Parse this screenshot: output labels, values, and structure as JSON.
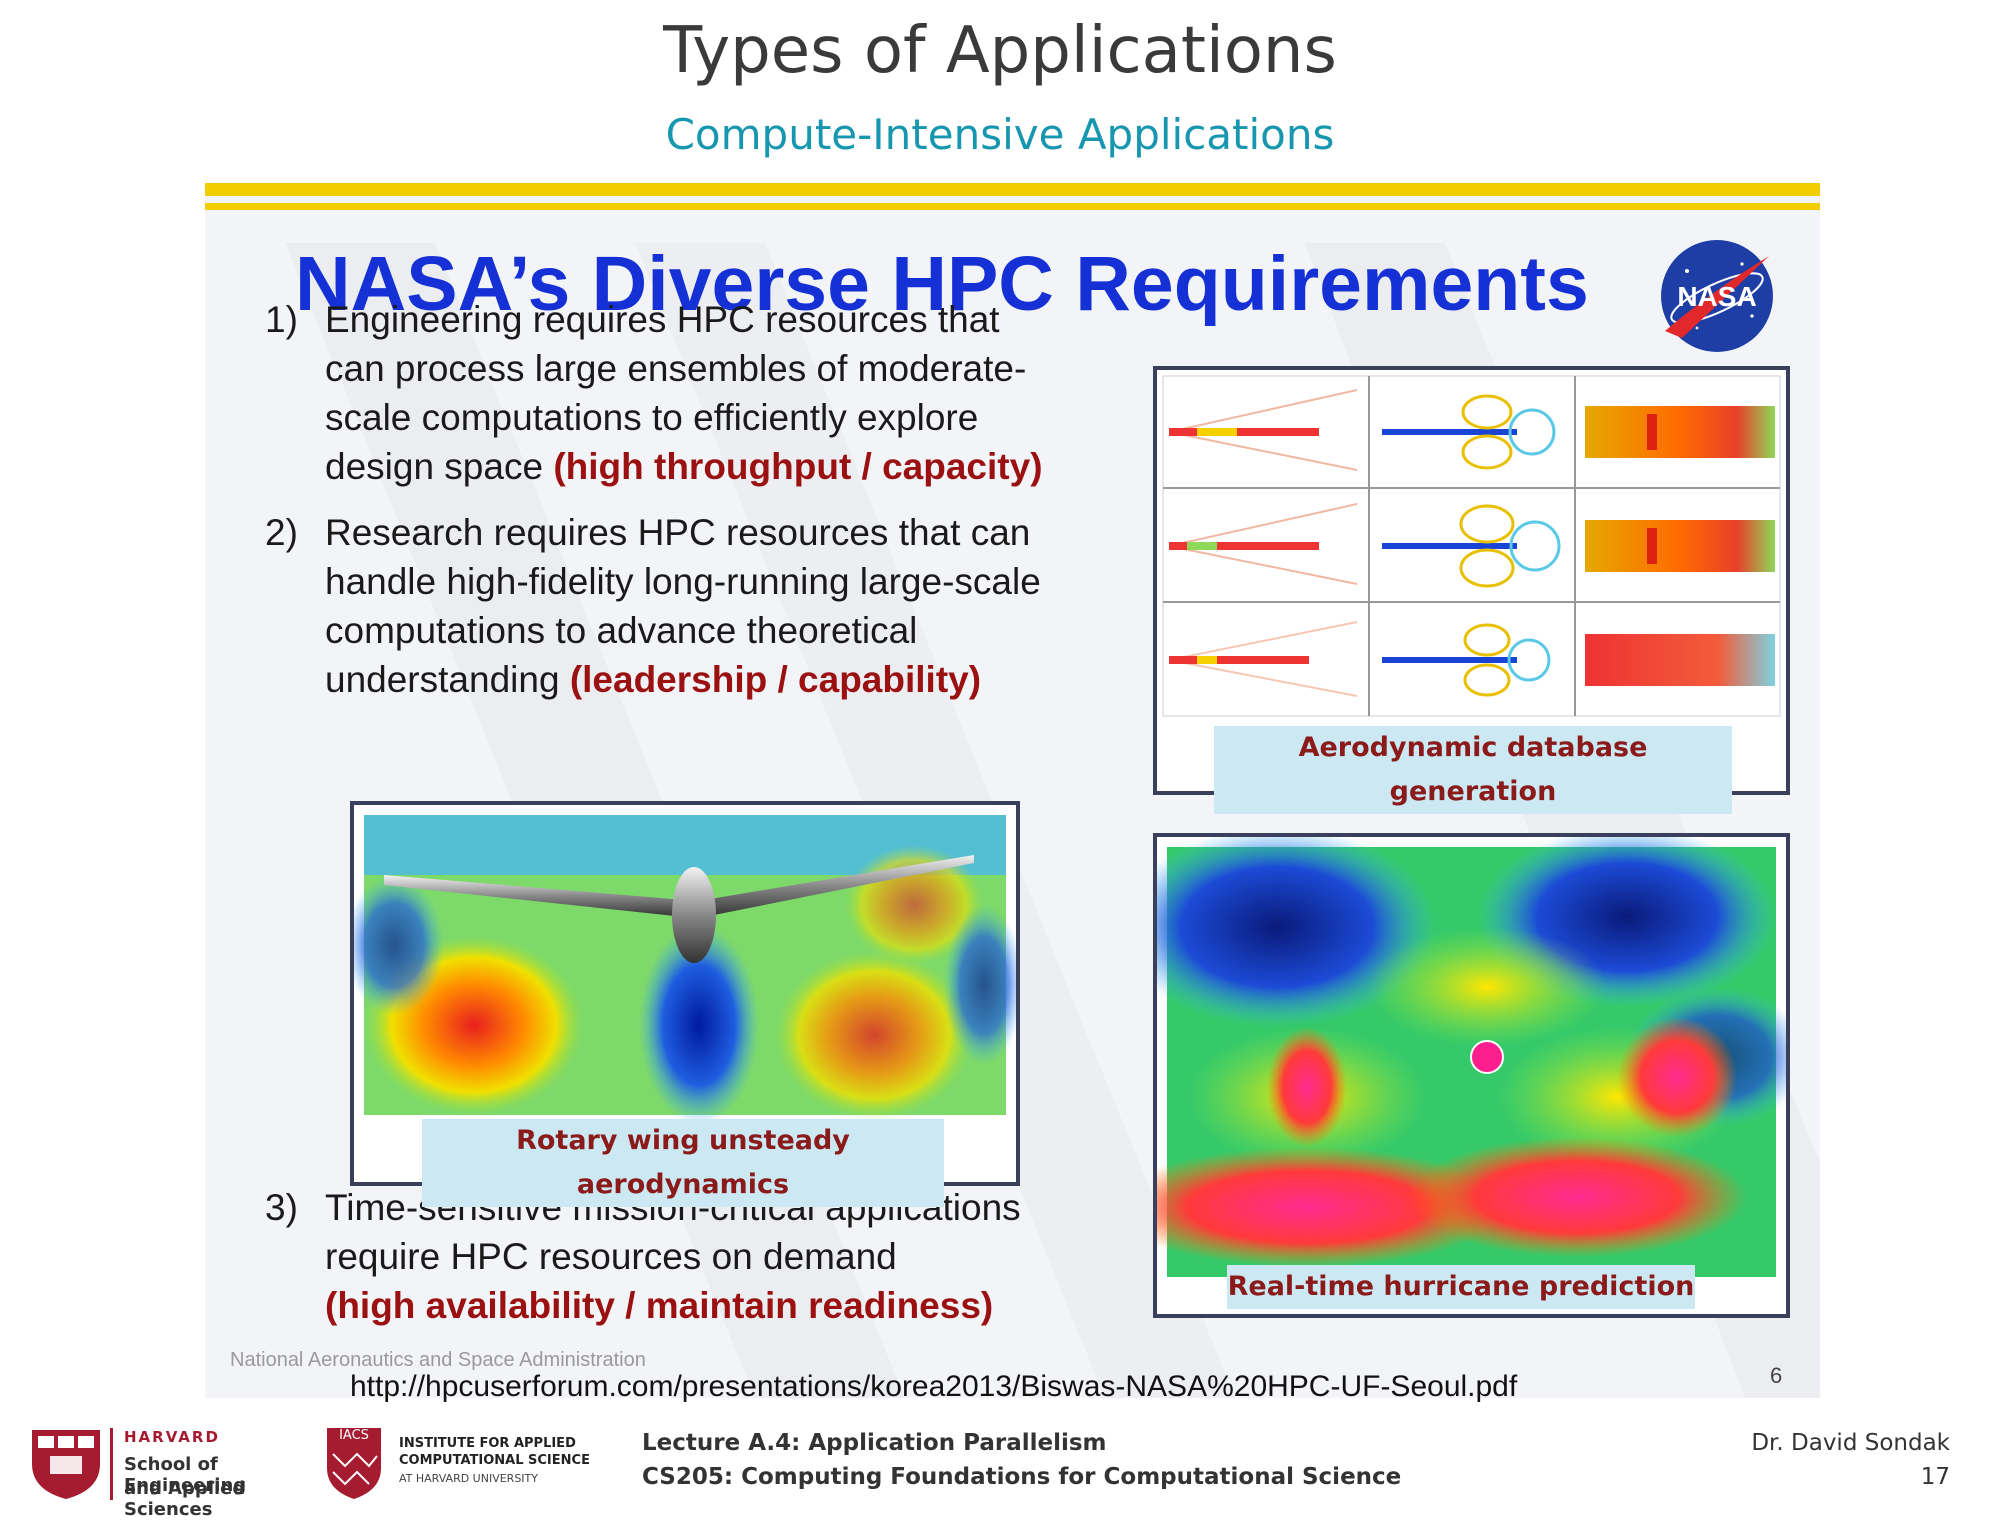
{
  "header": {
    "title": "Types of Applications",
    "subtitle": "Compute-Intensive Applications"
  },
  "nasa_slide": {
    "heading": "NASA’s Diverse HPC Requirements",
    "logo_text": "NASA",
    "requirements": [
      {
        "number": "1)",
        "lines": [
          "Engineering requires HPC resources that",
          "can process large ensembles of moderate-",
          "scale computations to efficiently explore",
          "design space "
        ],
        "highlight": "(high throughput / capacity)"
      },
      {
        "number": "2)",
        "lines": [
          "Research requires HPC resources that can",
          "handle high-fidelity long-running large-scale",
          "computations to advance theoretical",
          "understanding "
        ],
        "highlight": "(leadership / capability)"
      },
      {
        "number": "3)",
        "lines": [
          "Time-sensitive mission-critical applications",
          "require HPC resources on demand"
        ],
        "highlight": "(high availability / maintain readiness)"
      }
    ],
    "captions": {
      "aero": "Aerodynamic database generation",
      "rotary": "Rotary wing unsteady aerodynamics",
      "hurricane": "Real-time hurricane prediction"
    },
    "footer": "National Aeronautics and Space Administration",
    "slide_number": "6"
  },
  "source_url": "http://hpcuserforum.com/presentations/korea2013/Biswas-NASA%20HPC-UF-Seoul.pdf",
  "footer": {
    "harvard_top": "HARVARD",
    "harvard_line1": "School of Engineering",
    "harvard_line2": "and Applied Sciences",
    "iacs_badge": "IACS",
    "iacs_line1": "INSTITUTE FOR APPLIED",
    "iacs_line2": "COMPUTATIONAL SCIENCE",
    "iacs_line3": "AT HARVARD UNIVERSITY",
    "lecture": "Lecture A.4: Application Parallelism",
    "course": "CS205: Computing Foundations for Computational Science",
    "author": "Dr. David Sondak",
    "page": "17"
  },
  "colors": {
    "title": "#3a3a3a",
    "subtitle": "#1796b0",
    "nasa_heading": "#1531d6",
    "highlight": "#9b1111",
    "caption_bg": "#cce9f3",
    "yellow_bar": "#f2cd00",
    "harvard_red": "#a51c30"
  }
}
